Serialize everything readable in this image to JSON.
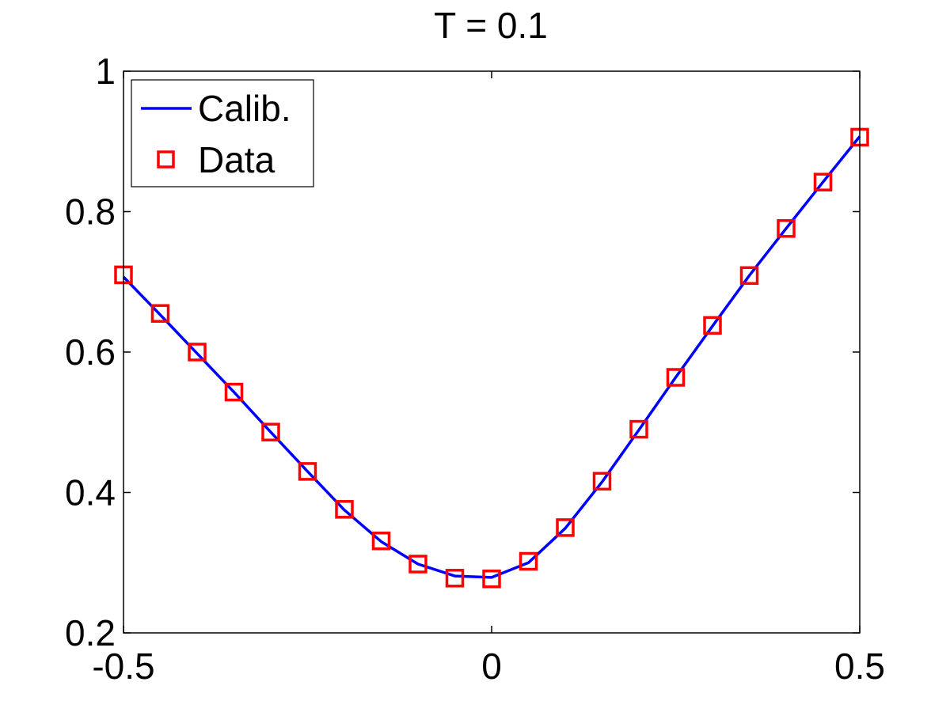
{
  "chart_data": {
    "type": "line",
    "title": "T = 0.1",
    "xlabel": "",
    "ylabel": "",
    "xlim": [
      -0.5,
      0.5
    ],
    "ylim": [
      0.2,
      1.0
    ],
    "xticks": [
      -0.5,
      0,
      0.5
    ],
    "xtick_labels": [
      "-0.5",
      "0",
      "0.5"
    ],
    "yticks": [
      0.2,
      0.4,
      0.6,
      0.8,
      1.0
    ],
    "ytick_labels": [
      "0.2",
      "0.4",
      "0.6",
      "0.8",
      "1"
    ],
    "grid": false,
    "legend_position": "top-left",
    "series": [
      {
        "name": "Calib.",
        "kind": "line",
        "color": "#0000ff",
        "x": [
          -0.5,
          -0.45,
          -0.4,
          -0.35,
          -0.3,
          -0.25,
          -0.2,
          -0.15,
          -0.1,
          -0.05,
          0.0,
          0.05,
          0.1,
          0.15,
          0.2,
          0.25,
          0.3,
          0.35,
          0.4,
          0.45,
          0.5
        ],
        "y": [
          0.707,
          0.653,
          0.598,
          0.543,
          0.486,
          0.43,
          0.375,
          0.33,
          0.298,
          0.281,
          0.279,
          0.3,
          0.349,
          0.415,
          0.489,
          0.564,
          0.637,
          0.709,
          0.776,
          0.842,
          0.907
        ]
      },
      {
        "name": "Data",
        "kind": "marker",
        "marker": "square",
        "color": "#ff0000",
        "x": [
          -0.5,
          -0.45,
          -0.4,
          -0.35,
          -0.3,
          -0.25,
          -0.2,
          -0.15,
          -0.1,
          -0.05,
          0.0,
          0.05,
          0.1,
          0.15,
          0.2,
          0.25,
          0.3,
          0.35,
          0.4,
          0.45,
          0.5
        ],
        "y": [
          0.71,
          0.655,
          0.6,
          0.543,
          0.486,
          0.43,
          0.376,
          0.331,
          0.298,
          0.278,
          0.277,
          0.302,
          0.35,
          0.416,
          0.49,
          0.564,
          0.638,
          0.709,
          0.776,
          0.842,
          0.906
        ]
      }
    ]
  }
}
